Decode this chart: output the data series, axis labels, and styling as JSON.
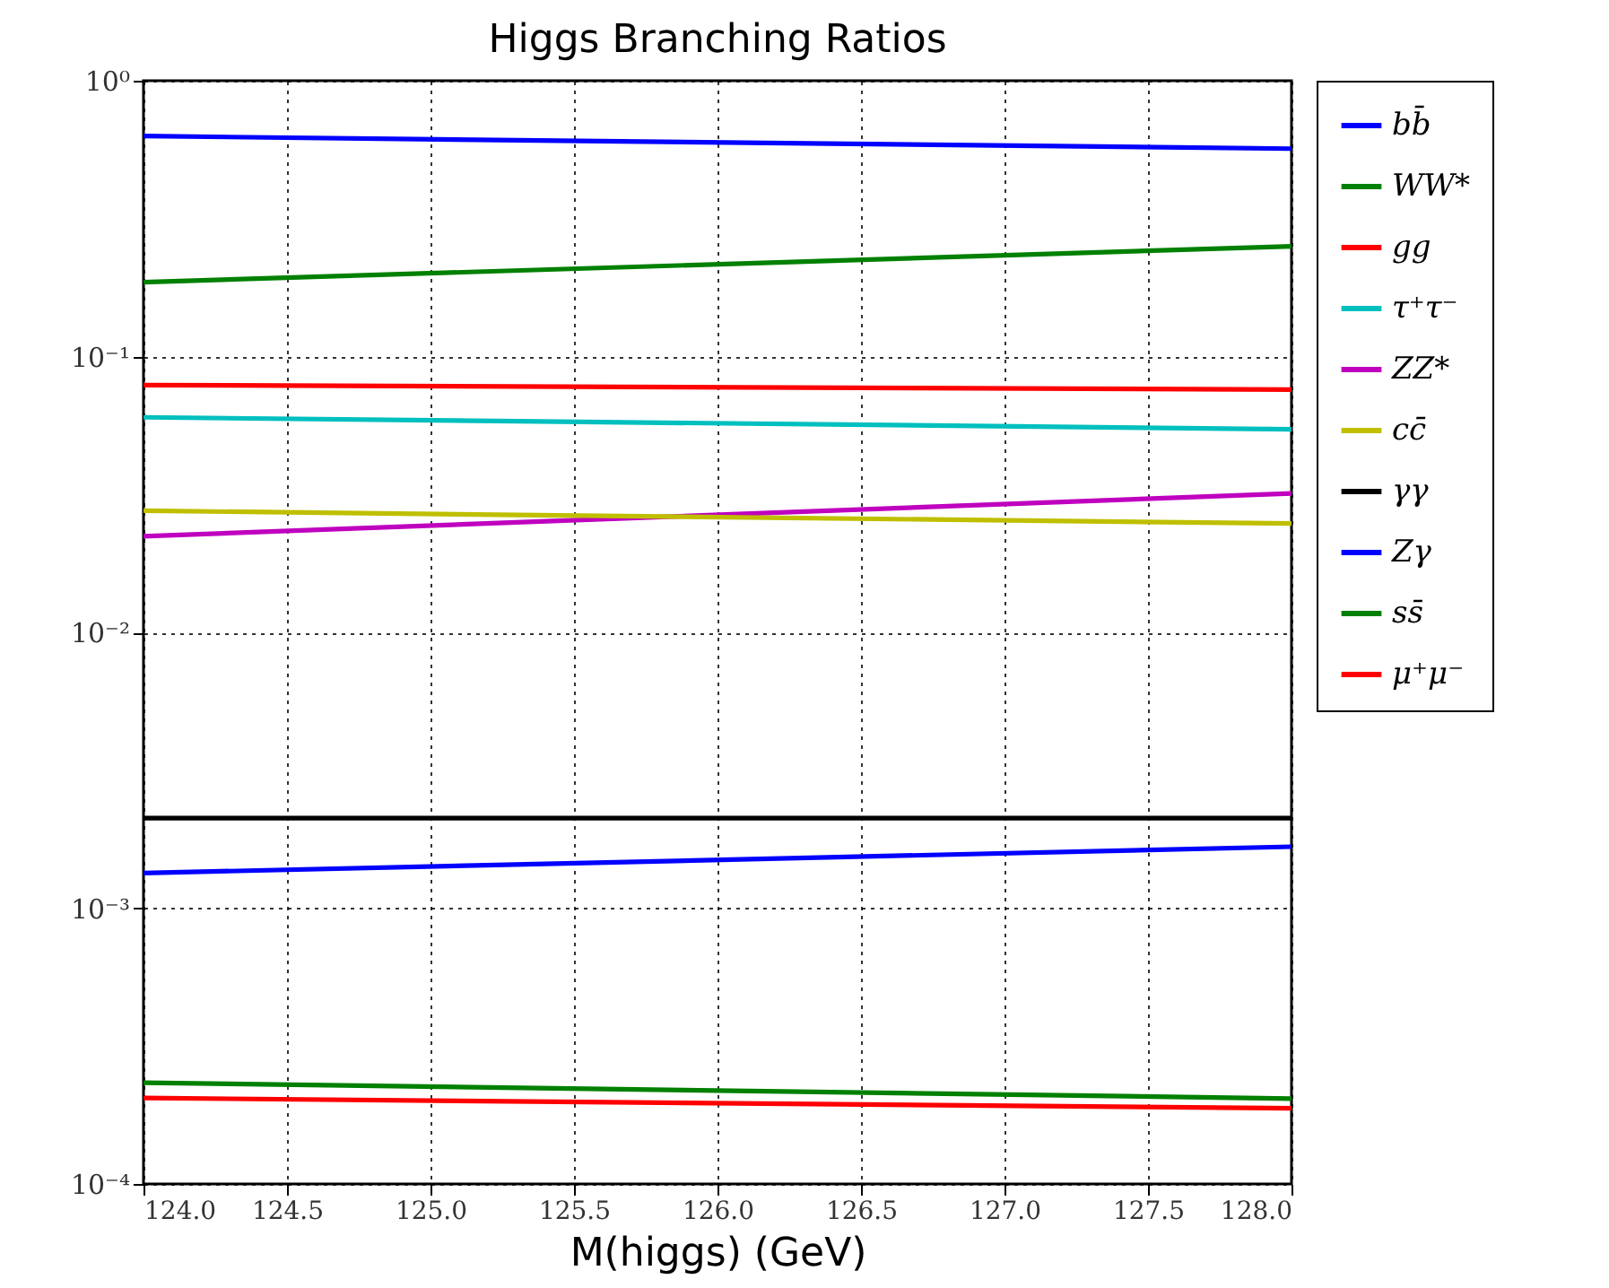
{
  "chart_data": {
    "type": "line",
    "title": "Higgs Branching Ratios",
    "xlabel": "M(higgs) (GeV)",
    "x": [
      124,
      128
    ],
    "series": [
      {
        "name": "bb̄",
        "color": "#0000ff",
        "values": [
          0.63,
          0.567
        ]
      },
      {
        "name": "WW*",
        "color": "#008000",
        "values": [
          0.186,
          0.251
        ]
      },
      {
        "name": "gg",
        "color": "#ff0000",
        "values": [
          0.0788,
          0.0759
        ]
      },
      {
        "name": "τ⁺τ⁻",
        "color": "#00bfbf",
        "values": [
          0.0602,
          0.0545
        ]
      },
      {
        "name": "ZZ*",
        "color": "#bf00bf",
        "values": [
          0.0223,
          0.0319
        ]
      },
      {
        "name": "cc̄",
        "color": "#bfbf00",
        "values": [
          0.0276,
          0.0248
        ]
      },
      {
        "name": "γγ",
        "color": "#000000",
        "values": [
          0.00212,
          0.00212
        ]
      },
      {
        "name": "Zγ",
        "color": "#0000ff",
        "values": [
          0.00134,
          0.00167
        ]
      },
      {
        "name": "ss̄",
        "color": "#008000",
        "values": [
          0.000233,
          0.000204
        ]
      },
      {
        "name": "μ⁺μ⁻",
        "color": "#ff0000",
        "values": [
          0.000205,
          0.000188
        ]
      }
    ],
    "log": true,
    "xlim": [
      124,
      128
    ],
    "xticks": [
      {
        "value": 124,
        "label": "124.0"
      },
      {
        "value": 124.5,
        "label": "124.5"
      },
      {
        "value": 125,
        "label": "125.0"
      },
      {
        "value": 125.5,
        "label": "125.5"
      },
      {
        "value": 126,
        "label": "126.0"
      },
      {
        "value": 126.5,
        "label": "126.5"
      },
      {
        "value": 127,
        "label": "127.0"
      },
      {
        "value": 127.5,
        "label": "127.5"
      },
      {
        "value": 128,
        "label": "128.0"
      }
    ],
    "ylim": [
      0.0001,
      1
    ],
    "yticks": [
      {
        "value": 0.0001,
        "label": "10⁻⁴"
      },
      {
        "value": 0.001,
        "label": "10⁻³"
      },
      {
        "value": 0.01,
        "label": "10⁻²"
      },
      {
        "value": 0.1,
        "label": "10⁻¹"
      },
      {
        "value": 1,
        "label": "10⁰"
      }
    ],
    "grid": true,
    "legend": "right"
  }
}
